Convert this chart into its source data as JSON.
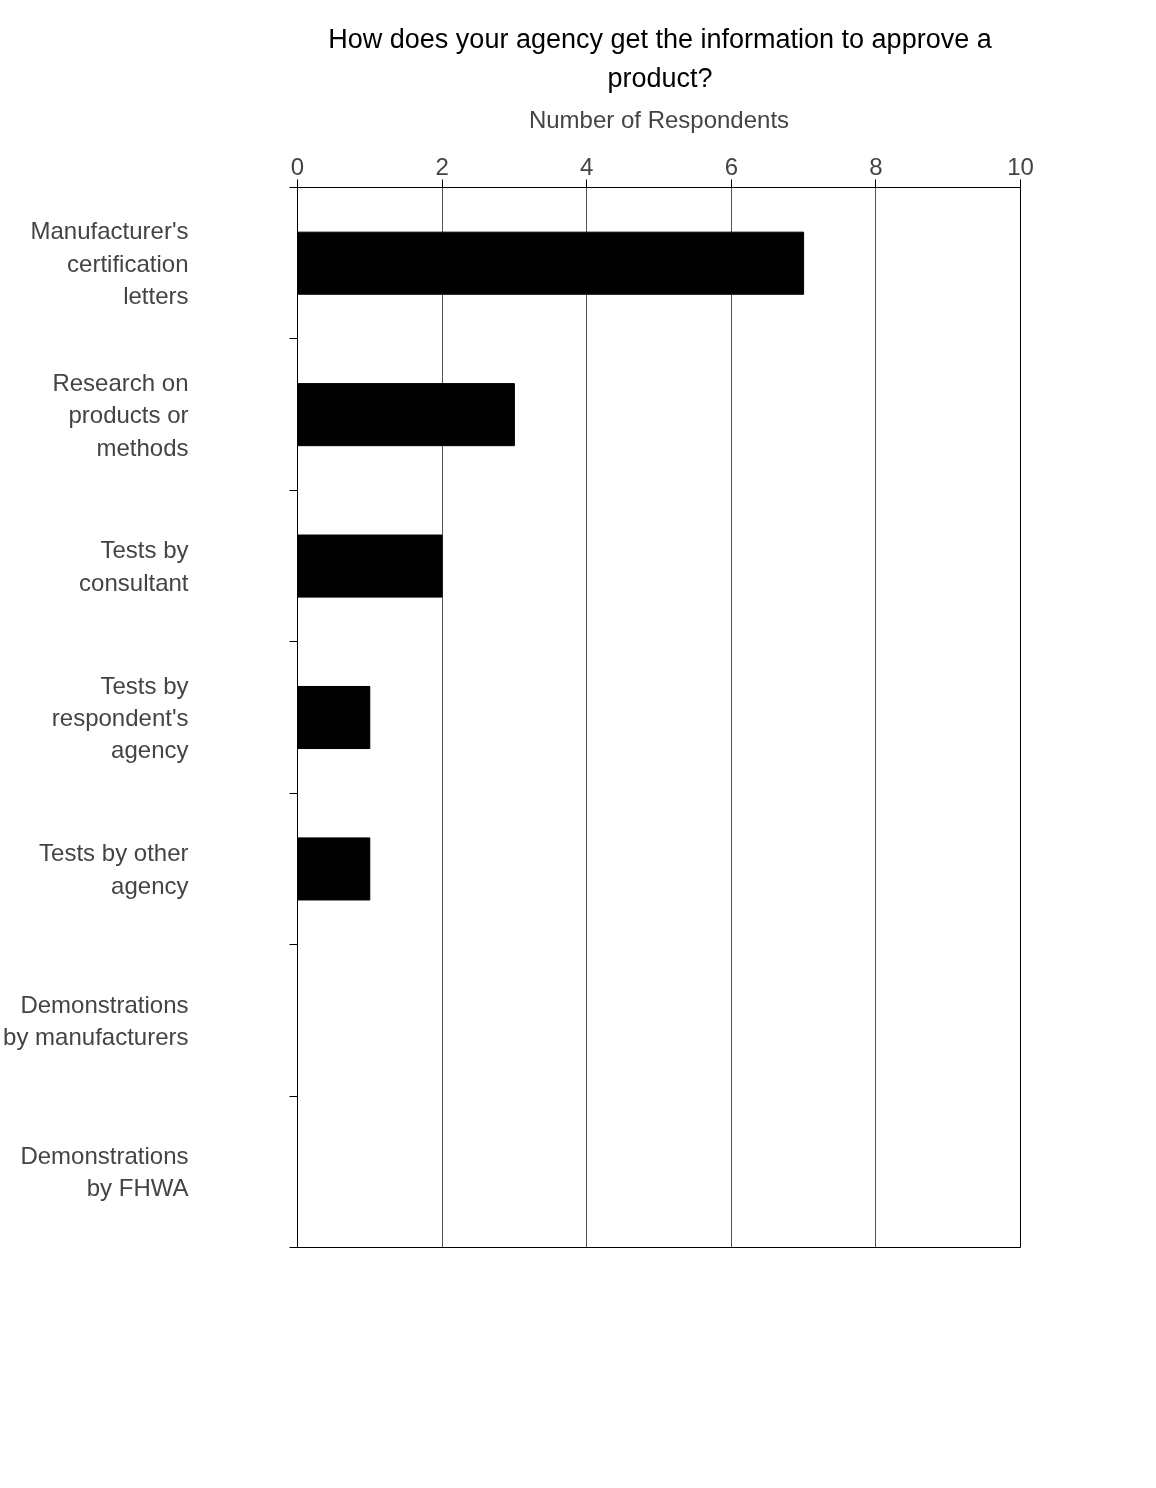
{
  "chart_data": {
    "type": "bar",
    "orientation": "horizontal",
    "title": "How does your agency get the information to approve a product?",
    "xlabel": "Number of Respondents",
    "categories": [
      "Manufacturer's certification letters",
      "Research on products or methods",
      "Tests by consultant",
      "Tests by respondent's agency",
      "Tests by other agency",
      "Demonstrations by manufacturers",
      "Demonstrations by FHWA"
    ],
    "values": [
      7,
      3,
      2,
      1,
      1,
      0,
      0
    ],
    "color": "#000000",
    "xlim": [
      0,
      10
    ],
    "xticks": [
      0,
      2,
      4,
      6,
      8,
      10
    ],
    "grid": "x"
  }
}
